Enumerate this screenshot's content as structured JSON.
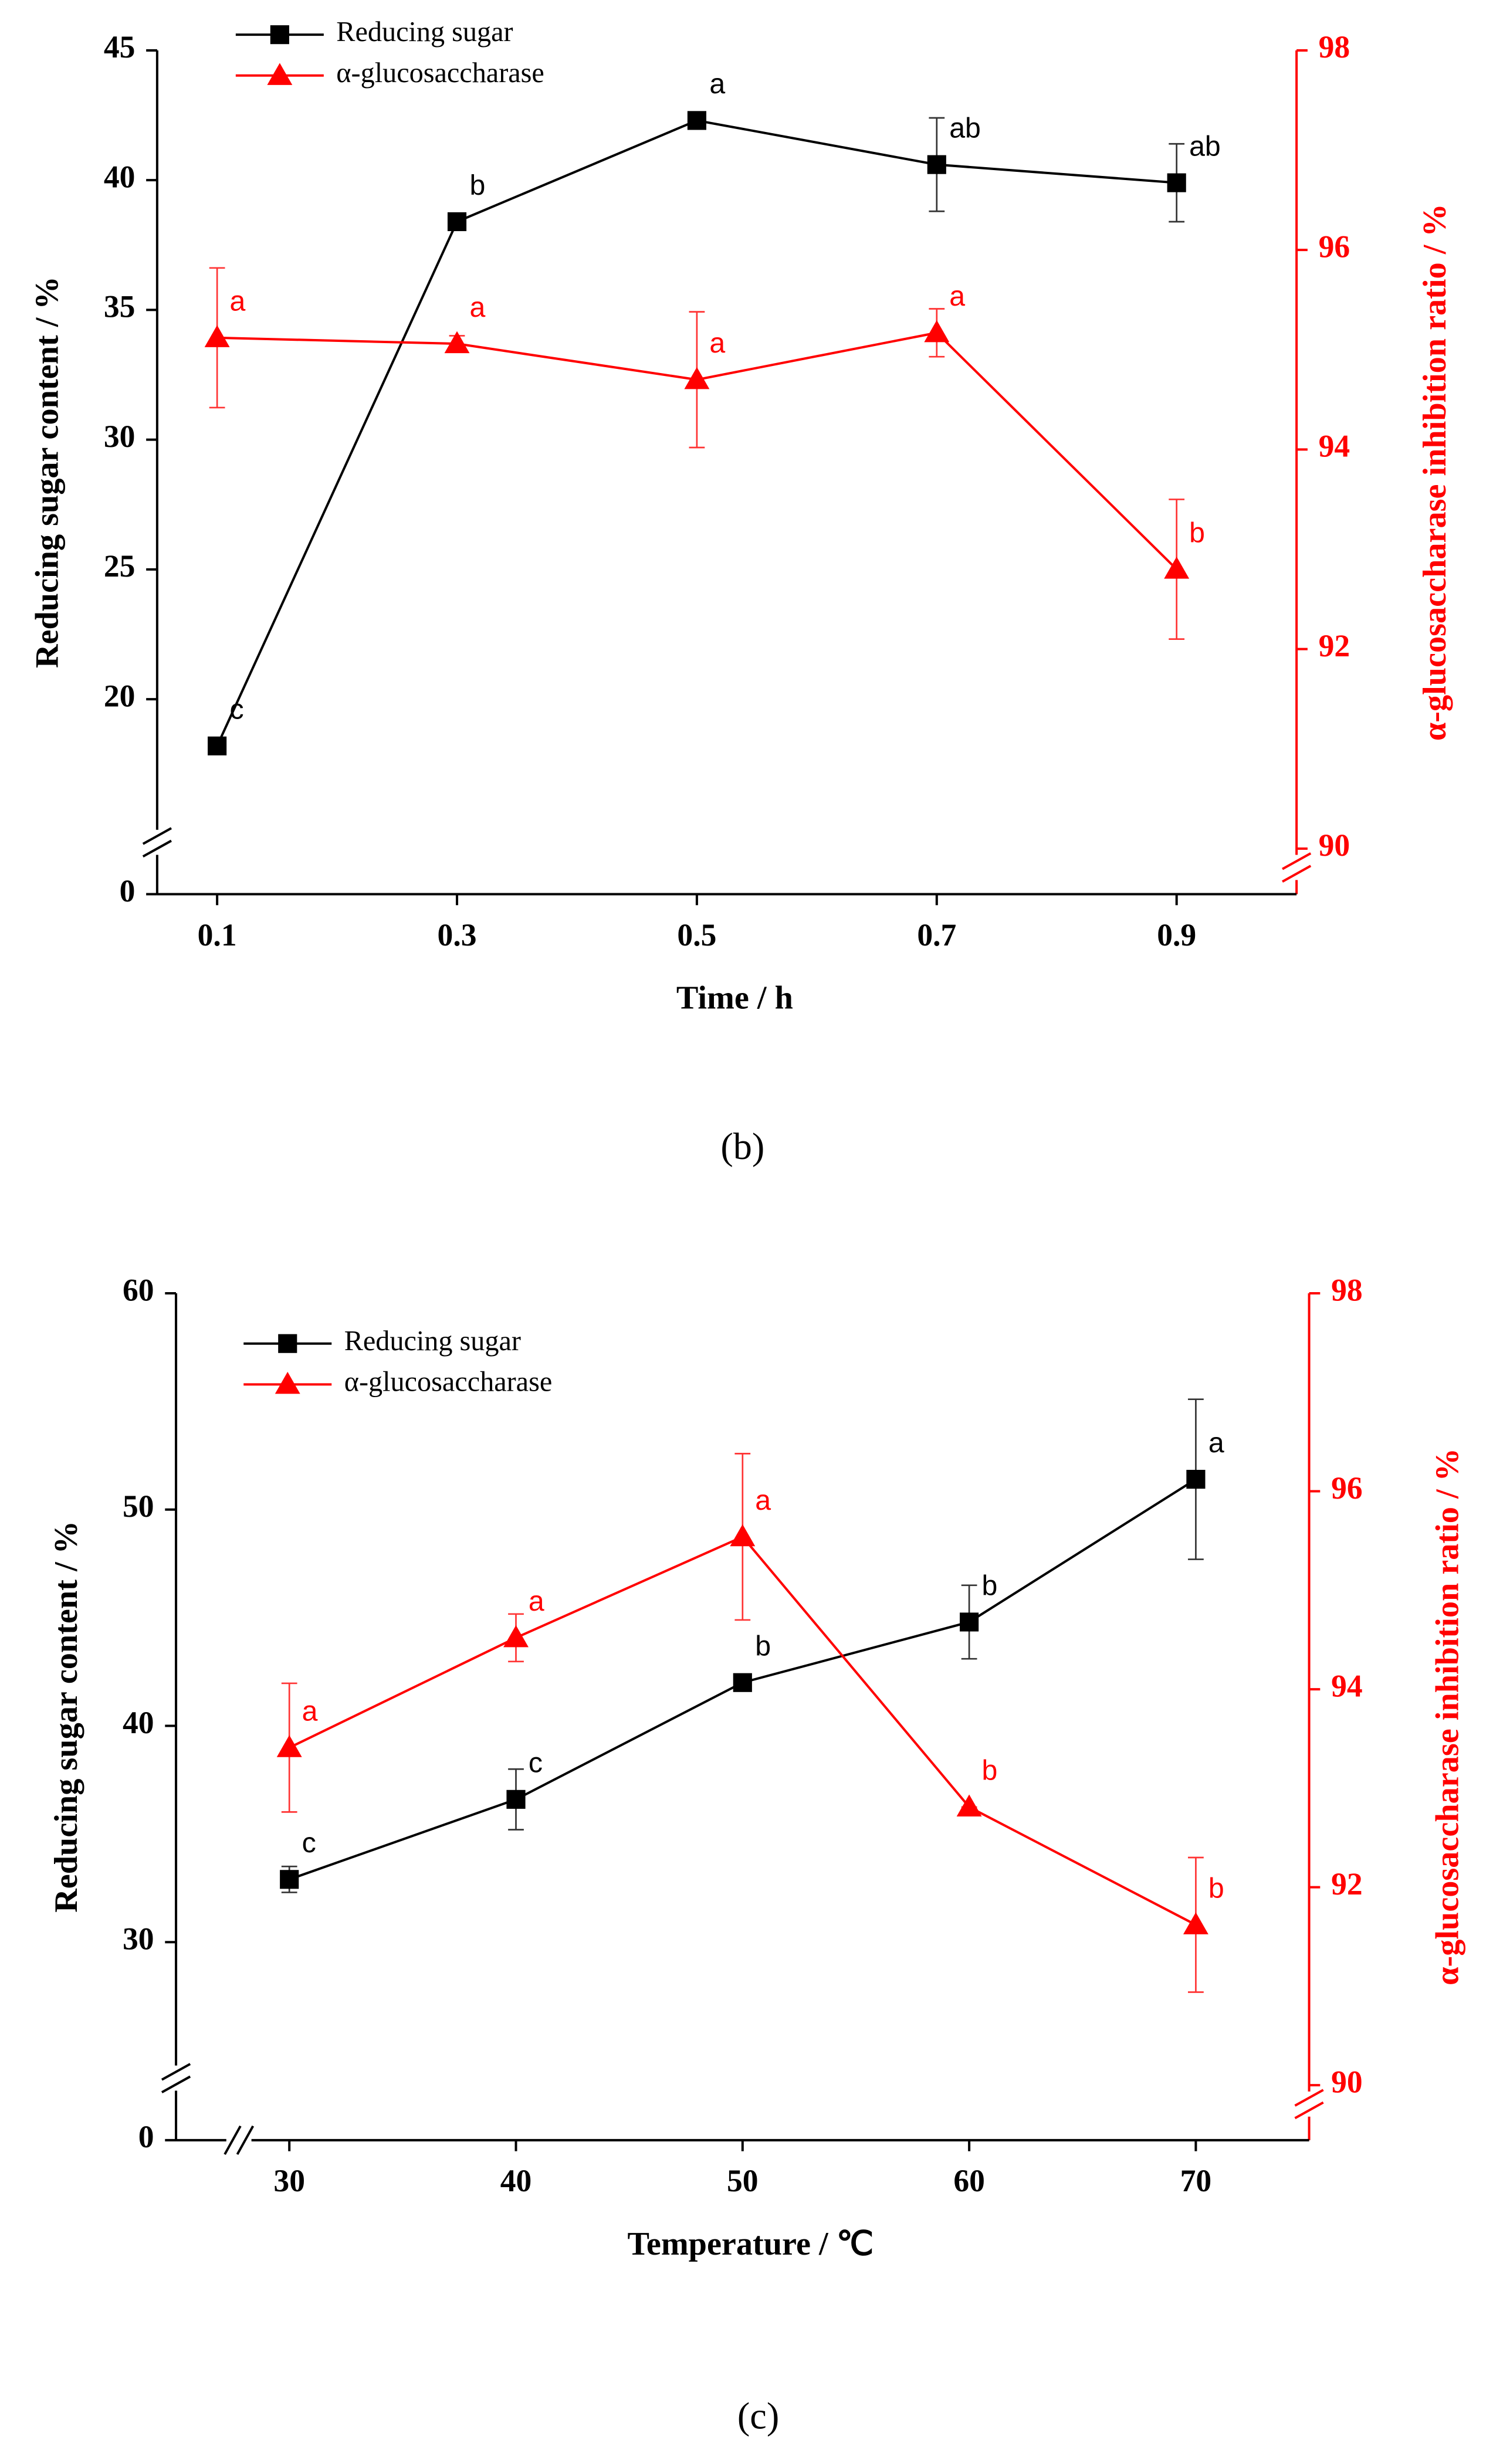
{
  "chart_data": [
    {
      "type": "line",
      "caption": "(b)",
      "x_label": "Time / h",
      "y_label": "Reducing sugar content  / %",
      "y2_label": "α-glucosaccharase inhibition ratio / %",
      "x": [
        0.1,
        0.3,
        0.5,
        0.7,
        0.9
      ],
      "xlim": [
        0.05,
        1.0
      ],
      "xticks": [
        0.1,
        0.3,
        0.5,
        0.7,
        0.9
      ],
      "ylim": [
        0,
        45
      ],
      "ybreak": [
        0,
        16
      ],
      "yticks": [
        0,
        20,
        25,
        30,
        35,
        40,
        45
      ],
      "y2lim": [
        90,
        98
      ],
      "y2ticks": [
        90,
        92,
        94,
        96,
        98
      ],
      "legend": "upper left",
      "series": [
        {
          "name": "Reducing sugar",
          "color": "#000000",
          "marker": "square",
          "values": [
            18.2,
            38.4,
            42.3,
            40.6,
            39.9
          ],
          "errors": [
            0.3,
            0.3,
            0.3,
            1.8,
            1.5
          ],
          "letters": [
            "c",
            "b",
            "a",
            "ab",
            "ab"
          ]
        },
        {
          "name": "α-glucosaccharase",
          "color": "#ff0000",
          "marker": "triangle",
          "axis": "y2",
          "values": [
            95.12,
            95.06,
            94.7,
            95.17,
            92.8
          ],
          "errors": [
            0.7,
            0.08,
            0.68,
            0.24,
            0.7
          ],
          "letters": [
            "a",
            "a",
            "a",
            "a",
            "b"
          ]
        }
      ]
    },
    {
      "type": "line",
      "caption": "(c)",
      "xaxis_break": true,
      "x_label": "Temperature / ℃",
      "y_label": "Reducing sugar content  / %",
      "y2_label": "α-glucosaccharase inhibition ratio / %",
      "x": [
        30,
        40,
        50,
        60,
        70
      ],
      "xlim": [
        25,
        75
      ],
      "xticks": [
        30,
        40,
        50,
        60,
        70
      ],
      "ylim": [
        0,
        60
      ],
      "ybreak": [
        0,
        26
      ],
      "yticks": [
        0,
        30,
        40,
        50,
        60
      ],
      "y2lim": [
        90,
        98
      ],
      "y2ticks": [
        90,
        92,
        94,
        96,
        98
      ],
      "legend": "upper left",
      "series": [
        {
          "name": "Reducing sugar",
          "color": "#000000",
          "marker": "square",
          "values": [
            32.9,
            36.6,
            42.0,
            44.8,
            51.4
          ],
          "errors": [
            0.6,
            1.4,
            0.2,
            1.7,
            3.7
          ],
          "letters": [
            "c",
            "c",
            "b",
            "b",
            "a"
          ]
        },
        {
          "name": "α-glucosaccharase",
          "color": "#ff0000",
          "marker": "triangle",
          "axis": "y2",
          "values": [
            93.41,
            94.52,
            95.54,
            92.81,
            91.62
          ],
          "errors": [
            0.65,
            0.24,
            0.84,
            0,
            0.68
          ],
          "letters": [
            "a",
            "a",
            "a",
            "b",
            "b"
          ]
        }
      ]
    }
  ]
}
